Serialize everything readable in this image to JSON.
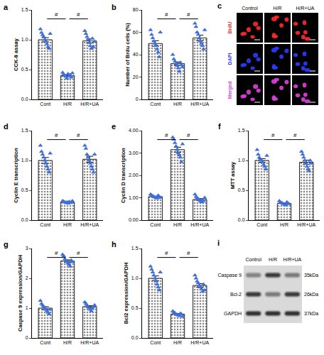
{
  "chart_data": [
    {
      "type": "bar",
      "panel_label": "a",
      "y_label": "CCK-8 assay",
      "categories": [
        "Cont",
        "H/R",
        "H/R+UA"
      ],
      "values": [
        1.0,
        0.4,
        0.98
      ],
      "errors": [
        0.035,
        0.015,
        0.035
      ],
      "points": [
        [
          1.18,
          1.12,
          1.08,
          1.05,
          1.0,
          0.97,
          0.93,
          0.88,
          0.85,
          1.1
        ],
        [
          0.45,
          0.42,
          0.4,
          0.38,
          0.35,
          0.43,
          0.39,
          0.41,
          0.37,
          0.44
        ],
        [
          1.15,
          1.1,
          1.05,
          1.0,
          0.95,
          0.9,
          0.85,
          1.02,
          0.88,
          0.97
        ]
      ],
      "color": "#3f6fd8",
      "marker": "triangle-up",
      "ylim": [
        0,
        1.5
      ],
      "yticks": [
        {
          "value": 0,
          "label": "0.0"
        },
        {
          "value": 0.5,
          "label": "0.5"
        },
        {
          "value": 1,
          "label": "1.0"
        },
        {
          "value": 1.5,
          "label": "1.5"
        }
      ],
      "annotations": [
        {
          "between": [
            "Cont",
            "H/R"
          ],
          "text": "#"
        },
        {
          "between": [
            "H/R",
            "H/R+UA"
          ],
          "text": "#"
        }
      ]
    },
    {
      "type": "bar",
      "panel_label": "b",
      "y_label": "Number of Brdu cells (%)",
      "categories": [
        "Cont",
        "H/R",
        "H/R+UA"
      ],
      "values": [
        50,
        32,
        55
      ],
      "errors": [
        2.5,
        1.5,
        2.5
      ],
      "points": [
        [
          62,
          58,
          55,
          52,
          50,
          48,
          45,
          42,
          38,
          60
        ],
        [
          40,
          36,
          34,
          32,
          30,
          28,
          25,
          33,
          31,
          29
        ],
        [
          68,
          65,
          60,
          58,
          55,
          52,
          50,
          48,
          45,
          62
        ]
      ],
      "color": "#3f6fd8",
      "marker": "triangle-up",
      "ylim": [
        0,
        80
      ],
      "yticks": [
        0,
        20,
        40,
        60,
        80
      ],
      "annotations": [
        {
          "between": [
            "Cont",
            "H/R"
          ],
          "text": "#"
        },
        {
          "between": [
            "H/R",
            "H/R+UA"
          ],
          "text": "#"
        }
      ]
    },
    {
      "type": "bar",
      "panel_label": "d",
      "y_label": "Cyclin E transcription",
      "categories": [
        "Cont",
        "H/R",
        "H/R+UA"
      ],
      "values": [
        1.0,
        0.3,
        1.02
      ],
      "errors": [
        0.05,
        0.005,
        0.05
      ],
      "points": [
        [
          1.25,
          1.15,
          1.1,
          1.05,
          1.0,
          0.95,
          0.9,
          0.85,
          0.8,
          1.12
        ],
        [
          0.32,
          0.31,
          0.3,
          0.29,
          0.3,
          0.28,
          0.31,
          0.29,
          0.3,
          0.32
        ],
        [
          1.25,
          1.2,
          1.1,
          1.05,
          1.0,
          0.95,
          0.9,
          0.85,
          0.8,
          1.1
        ]
      ],
      "color": "#3f6fd8",
      "marker": "triangle-up",
      "ylim": [
        0,
        1.5
      ],
      "yticks": [
        {
          "value": 0,
          "label": "0.0"
        },
        {
          "value": 0.5,
          "label": "0.5"
        },
        {
          "value": 1,
          "label": "1.0"
        },
        {
          "value": 1.5,
          "label": "1.5"
        }
      ],
      "annotations": [
        {
          "between": [
            "Cont",
            "H/R"
          ],
          "text": "#"
        },
        {
          "between": [
            "H/R",
            "H/R+UA"
          ],
          "text": "#"
        }
      ]
    },
    {
      "type": "bar",
      "panel_label": "e",
      "y_label": "Cyclin D transcription",
      "categories": [
        "Cont",
        "H/R",
        "H/R+UA"
      ],
      "values": [
        1.05,
        3.15,
        0.92
      ],
      "errors": [
        0.015,
        0.11,
        0.04
      ],
      "points": [
        [
          1.15,
          1.1,
          1.08,
          1.05,
          1.02,
          1.0,
          0.98,
          1.1,
          1.05,
          1.0
        ],
        [
          3.7,
          3.6,
          3.45,
          3.3,
          3.15,
          3.0,
          2.9,
          2.8,
          2.6,
          3.4
        ],
        [
          1.15,
          1.05,
          1.0,
          0.95,
          0.9,
          0.85,
          0.8,
          0.9,
          0.85,
          1.0
        ]
      ],
      "color": "#3f6fd8",
      "marker": "triangle-up",
      "ylim": [
        0,
        4
      ],
      "yticks": [
        {
          "value": 0,
          "label": "0.00"
        },
        {
          "value": 1,
          "label": "1.00"
        },
        {
          "value": 2,
          "label": "2.00"
        },
        {
          "value": 3,
          "label": "3.00"
        },
        {
          "value": 4,
          "label": "4.00"
        }
      ],
      "annotations": [
        {
          "between": [
            "Cont",
            "H/R"
          ],
          "text": "#"
        },
        {
          "between": [
            "H/R",
            "H/R+UA"
          ],
          "text": "#"
        }
      ]
    },
    {
      "type": "bar",
      "panel_label": "f",
      "y_label": "MTT assay",
      "categories": [
        "Cont",
        "H/R",
        "H/R+UA"
      ],
      "values": [
        1.0,
        0.28,
        0.97
      ],
      "errors": [
        0.03,
        0.007,
        0.035
      ],
      "points": [
        [
          1.18,
          1.1,
          1.05,
          1.02,
          1.0,
          0.97,
          0.93,
          0.9,
          0.85,
          1.08
        ],
        [
          0.32,
          0.3,
          0.29,
          0.28,
          0.27,
          0.26,
          0.25,
          0.3,
          0.28,
          0.27
        ],
        [
          1.15,
          1.1,
          1.05,
          1.0,
          0.95,
          0.9,
          0.85,
          0.82,
          1.0,
          0.95
        ]
      ],
      "color": "#3f6fd8",
      "marker": "triangle-up",
      "ylim": [
        0,
        1.5
      ],
      "yticks": [
        {
          "value": 0,
          "label": "0.0"
        },
        {
          "value": 0.5,
          "label": "0.5"
        },
        {
          "value": 1,
          "label": "1.0"
        },
        {
          "value": 1.5,
          "label": "1.5"
        }
      ],
      "annotations": [
        {
          "between": [
            "Cont",
            "H/R"
          ],
          "text": "#"
        },
        {
          "between": [
            "H/R",
            "H/R+UA"
          ],
          "text": "#"
        }
      ]
    },
    {
      "type": "bar",
      "panel_label": "g",
      "y_label": "Caspase 9 expression/GAPDH",
      "categories": [
        "Cont",
        "H/R",
        "H/R+UA"
      ],
      "values": [
        1.0,
        2.58,
        1.05
      ],
      "errors": [
        0.05,
        0.04,
        0.03
      ],
      "points": [
        [
          1.25,
          1.15,
          1.1,
          1.05,
          1.0,
          0.95,
          0.9,
          0.85,
          0.8,
          0.95
        ],
        [
          2.8,
          2.75,
          2.65,
          2.6,
          2.55,
          2.5,
          2.45,
          2.4,
          2.6,
          2.55
        ],
        [
          1.2,
          1.15,
          1.1,
          1.05,
          1.0,
          0.95,
          0.9,
          1.0,
          1.05,
          1.1
        ]
      ],
      "color": "#3f6fd8",
      "marker": "triangle-up",
      "ylim": [
        0,
        3
      ],
      "yticks": [
        0,
        1,
        2,
        3
      ],
      "annotations": [
        {
          "between": [
            "Cont",
            "H/R"
          ],
          "text": "#"
        },
        {
          "between": [
            "H/R",
            "H/R+UA"
          ],
          "text": "#"
        }
      ]
    },
    {
      "type": "bar",
      "panel_label": "h",
      "y_label": "Bcl2 expression/GAPDH",
      "categories": [
        "Cont",
        "H/R",
        "H/R+UA"
      ],
      "values": [
        1.0,
        0.4,
        0.88
      ],
      "errors": [
        0.04,
        0.01,
        0.03
      ],
      "points": [
        [
          1.2,
          1.15,
          1.1,
          1.05,
          1.0,
          0.95,
          0.9,
          0.85,
          0.8,
          1.1
        ],
        [
          0.45,
          0.43,
          0.42,
          0.4,
          0.39,
          0.38,
          0.37,
          0.41,
          0.4,
          0.36
        ],
        [
          1.05,
          1.0,
          0.95,
          0.92,
          0.88,
          0.85,
          0.82,
          0.78,
          0.9,
          0.8
        ]
      ],
      "color": "#3f6fd8",
      "marker": "triangle-up",
      "ylim": [
        0,
        1.5
      ],
      "yticks": [
        {
          "value": 0,
          "label": "0.0"
        },
        {
          "value": 0.5,
          "label": "0.5"
        },
        {
          "value": 1,
          "label": "1.0"
        },
        {
          "value": 1.5,
          "label": "1.5"
        }
      ],
      "annotations": [
        {
          "between": [
            "Cont",
            "H/R"
          ],
          "text": "#"
        },
        {
          "between": [
            "H/R",
            "H/R+UA"
          ],
          "text": "#"
        }
      ]
    }
  ],
  "figure_panels": [
    {
      "type": "image",
      "panel_label": "c",
      "columns": [
        "Control",
        "H/R",
        "H/R+UA"
      ],
      "rows": [
        {
          "label": "BrdU",
          "color": "#ff2a2a"
        },
        {
          "label": "DAPI",
          "color": "#2a3cff"
        },
        {
          "label": "Merged",
          "color": "#e040e0"
        }
      ]
    },
    {
      "type": "blot",
      "panel_label": "i",
      "columns": [
        "Control",
        "H/R",
        "H/R+UA"
      ],
      "rows": [
        {
          "label": "Caspase 9",
          "size": "35kDa"
        },
        {
          "label": "Bcl-2",
          "size": "26kDa"
        },
        {
          "label": "GAPDH",
          "size": "37kDa"
        }
      ]
    }
  ]
}
